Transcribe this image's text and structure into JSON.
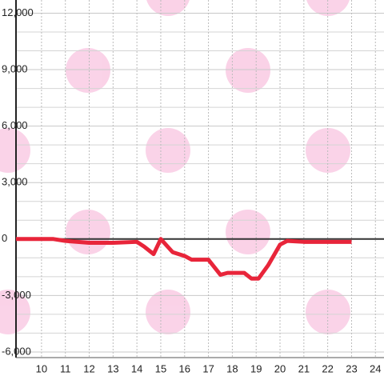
{
  "chart_data": {
    "type": "line",
    "x": [
      8.93,
      10.5,
      11,
      12,
      13,
      14,
      14.3,
      14.7,
      15,
      15.5,
      16,
      16.3,
      17,
      17.5,
      17.8,
      18.5,
      18.8,
      19.1,
      19.5,
      20,
      20.3,
      21,
      22,
      23
    ],
    "series": [
      {
        "color": "#e8253a",
        "values": [
          0,
          0,
          -100,
          -200,
          -200,
          -150,
          -400,
          -800,
          0,
          -700,
          -900,
          -1100,
          -1100,
          -1900,
          -1800,
          -1800,
          -2100,
          -2100,
          -1400,
          -300,
          -100,
          -150,
          -150,
          -150
        ]
      }
    ],
    "xlim": [
      8.93,
      24.36
    ],
    "ylim": [
      -6300,
      12700
    ],
    "xticks": [
      10,
      11,
      12,
      13,
      14,
      15,
      16,
      17,
      18,
      19,
      20,
      21,
      22,
      23,
      24
    ],
    "yticks": [
      {
        "value": -6000,
        "label": "-6,000"
      },
      {
        "value": -3000,
        "label": "-3,000"
      },
      0,
      {
        "value": 3000,
        "label": "3,000"
      },
      {
        "value": 6000,
        "label": "6,000"
      },
      {
        "value": 9000,
        "label": "9,000"
      },
      {
        "value": 12000,
        "label": "12,000"
      }
    ],
    "y_gridlines": [
      -5000,
      -4000,
      -2000,
      -1000,
      1000,
      2000,
      4000,
      5000,
      7000,
      8000,
      10000,
      11000
    ],
    "grid": true
  }
}
